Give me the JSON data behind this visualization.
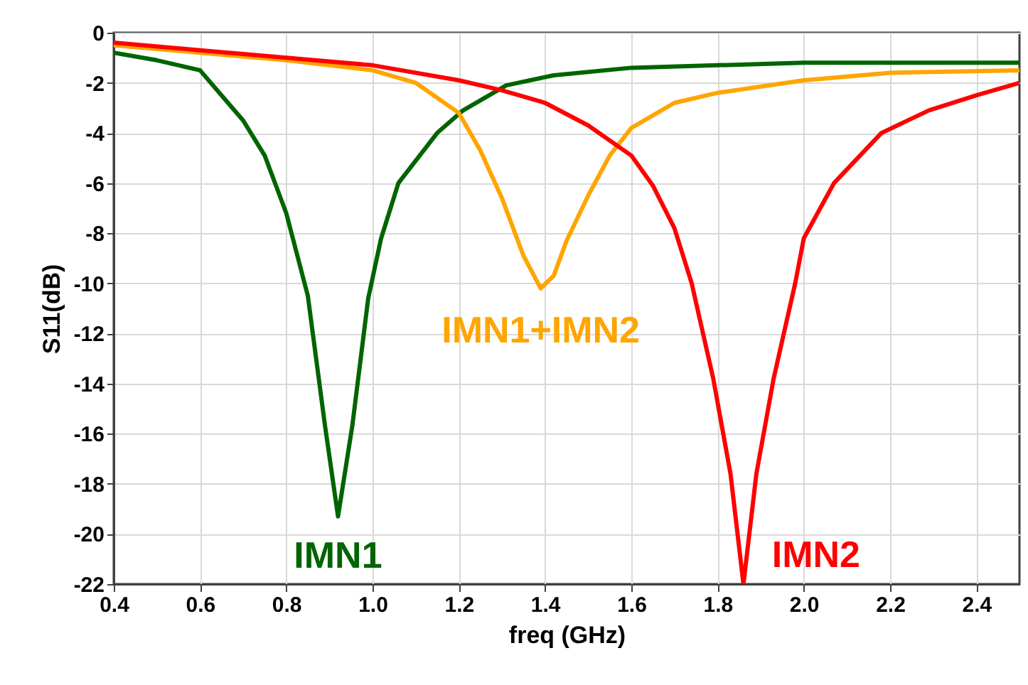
{
  "chart_data": {
    "type": "line",
    "xlabel": "freq (GHz)",
    "ylabel": "S11(dB)",
    "xlim": [
      0.4,
      2.5
    ],
    "ylim": [
      -22,
      0
    ],
    "xticks": [
      0.4,
      0.6,
      0.8,
      {
        "value": 1,
        "label": "1.0"
      },
      1.2,
      1.4,
      1.6,
      1.8,
      {
        "value": 2,
        "label": "2.0"
      },
      2.2,
      2.4
    ],
    "yticks": [
      -22,
      -20,
      -18,
      -16,
      -14,
      -12,
      -10,
      -8,
      -6,
      -4,
      -2,
      0
    ],
    "grid": true,
    "line_style": "solid",
    "series": [
      {
        "name": "IMN1",
        "color": "#006400",
        "x": [
          0.4,
          0.5,
          0.6,
          0.65,
          0.7,
          0.75,
          0.8,
          0.85,
          0.89,
          0.92,
          0.953,
          0.99,
          1.02,
          1.06,
          1.15,
          1.21,
          1.31,
          1.42,
          1.6,
          1.8,
          2.0,
          2.2,
          2.5
        ],
        "values": [
          -0.8,
          -1.1,
          -1.5,
          -2.5,
          -3.5,
          -4.9,
          -7.2,
          -10.5,
          -15.7,
          -19.3,
          -15.7,
          -10.6,
          -8.2,
          -6,
          -4,
          -3.1,
          -2.1,
          -1.7,
          -1.4,
          -1.3,
          -1.2,
          -1.2,
          -1.2
        ]
      },
      {
        "name": "IMN1+IMN2",
        "color": "#ffa500",
        "x": [
          0.4,
          0.6,
          0.8,
          1.0,
          1.1,
          1.2,
          1.25,
          1.3,
          1.35,
          1.39,
          1.42,
          1.45,
          1.5,
          1.55,
          1.6,
          1.7,
          1.8,
          2.0,
          2.2,
          2.5
        ],
        "values": [
          -0.5,
          -0.8,
          -1.1,
          -1.5,
          -2.0,
          -3.2,
          -4.7,
          -6.6,
          -8.9,
          -10.2,
          -9.7,
          -8.3,
          -6.5,
          -4.9,
          -3.8,
          -2.8,
          -2.4,
          -1.9,
          -1.6,
          -1.5
        ]
      },
      {
        "name": "IMN2",
        "color": "#ff0000",
        "x": [
          0.4,
          0.6,
          0.8,
          1.0,
          1.2,
          1.3,
          1.4,
          1.5,
          1.6,
          1.65,
          1.7,
          1.74,
          1.79,
          1.83,
          1.86,
          1.89,
          1.93,
          1.98,
          2.0,
          2.07,
          2.18,
          2.29,
          2.4,
          2.5
        ],
        "values": [
          -0.4,
          -0.7,
          -1.0,
          -1.3,
          -1.9,
          -2.3,
          -2.8,
          -3.7,
          -4.9,
          -6.1,
          -7.8,
          -10,
          -13.8,
          -17.6,
          -22,
          -17.6,
          -13.8,
          -10,
          -8.2,
          -6,
          -4,
          -3.1,
          -2.5,
          -2.0
        ]
      }
    ]
  }
}
